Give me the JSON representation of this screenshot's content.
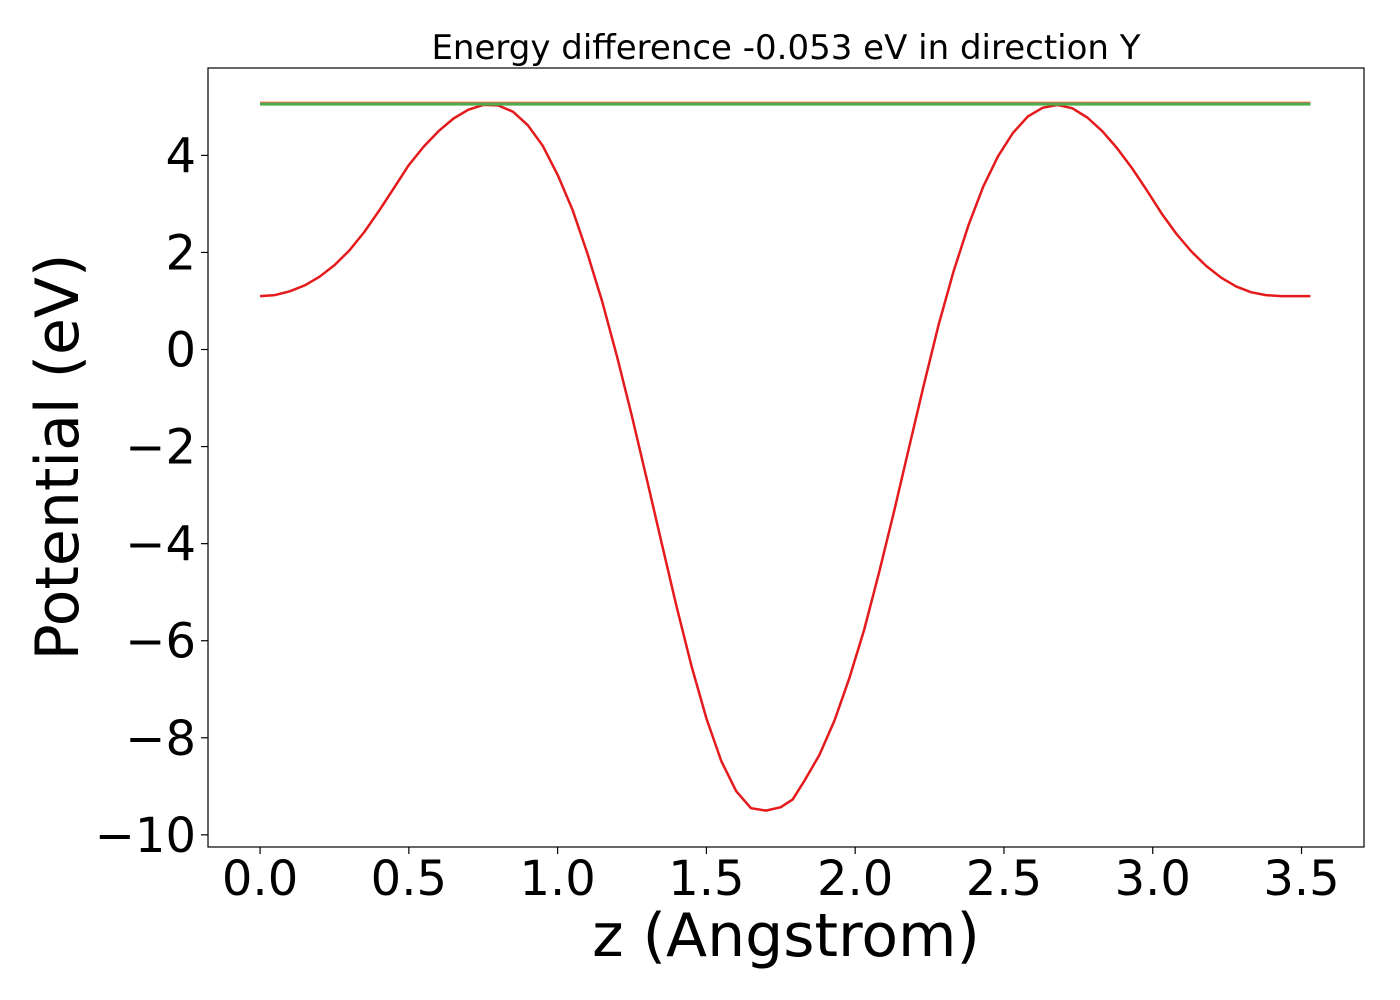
{
  "chart_data": {
    "type": "line",
    "title": "Energy difference -0.053 eV in direction Y",
    "xlabel": "z (Angstrom)",
    "ylabel": "Potential (eV)",
    "xlim": [
      -0.175,
      3.71
    ],
    "ylim": [
      -10.25,
      5.8
    ],
    "grid": false,
    "x_ticks": [
      0.0,
      0.5,
      1.0,
      1.5,
      2.0,
      2.5,
      3.0,
      3.5
    ],
    "x_tick_labels": [
      "0.0",
      "0.5",
      "1.0",
      "1.5",
      "2.0",
      "2.5",
      "3.0",
      "3.5"
    ],
    "y_ticks": [
      -10,
      -8,
      -6,
      -4,
      -2,
      0,
      2,
      4
    ],
    "y_tick_labels": [
      "−10",
      "−8",
      "−6",
      "−4",
      "−2",
      "0",
      "2",
      "4"
    ],
    "series": [
      {
        "color": "#e41a1c",
        "x": [
          0.0,
          0.05,
          0.1,
          0.15,
          0.2,
          0.25,
          0.3,
          0.35,
          0.4,
          0.45,
          0.5,
          0.55,
          0.6,
          0.65,
          0.7,
          0.75,
          0.8,
          0.85,
          0.9,
          0.95,
          1.0,
          1.05,
          1.1,
          1.15,
          1.2,
          1.25,
          1.3,
          1.35,
          1.4,
          1.45,
          1.5,
          1.55,
          1.6,
          1.65,
          1.7,
          1.75,
          1.79,
          1.83,
          1.88,
          1.93,
          1.98,
          2.03,
          2.08,
          2.13,
          2.18,
          2.23,
          2.28,
          2.33,
          2.38,
          2.43,
          2.48,
          2.53,
          2.58,
          2.63,
          2.68,
          2.73,
          2.78,
          2.83,
          2.88,
          2.93,
          2.98,
          3.03,
          3.08,
          3.13,
          3.18,
          3.23,
          3.28,
          3.33,
          3.38,
          3.43,
          3.48,
          3.53
        ],
        "y": [
          1.1,
          1.12,
          1.2,
          1.32,
          1.5,
          1.74,
          2.04,
          2.42,
          2.86,
          3.33,
          3.8,
          4.18,
          4.5,
          4.76,
          4.94,
          5.04,
          5.03,
          4.9,
          4.62,
          4.2,
          3.6,
          2.88,
          1.98,
          0.98,
          -0.15,
          -1.38,
          -2.68,
          -4.0,
          -5.3,
          -6.52,
          -7.6,
          -8.48,
          -9.1,
          -9.45,
          -9.5,
          -9.43,
          -9.27,
          -8.88,
          -8.35,
          -7.65,
          -6.78,
          -5.78,
          -4.6,
          -3.35,
          -2.05,
          -0.75,
          0.5,
          1.6,
          2.55,
          3.35,
          3.98,
          4.46,
          4.8,
          4.98,
          5.04,
          4.97,
          4.78,
          4.5,
          4.15,
          3.74,
          3.28,
          2.8,
          2.38,
          2.02,
          1.72,
          1.48,
          1.3,
          1.18,
          1.12,
          1.1,
          1.1,
          1.1
        ]
      },
      {
        "color": "#ff7f0e",
        "x": [
          0.0,
          3.53
        ],
        "y": [
          5.08,
          5.08
        ]
      },
      {
        "color": "#377eb8",
        "x": [
          0.0,
          3.53
        ],
        "y": [
          5.06,
          5.06
        ]
      },
      {
        "color": "#4daf4a",
        "x": [
          0.0,
          3.53
        ],
        "y": [
          5.05,
          5.05
        ]
      }
    ]
  }
}
